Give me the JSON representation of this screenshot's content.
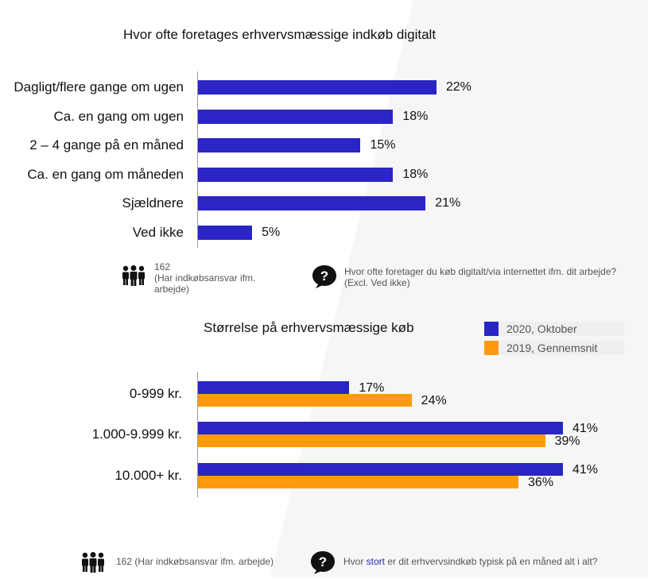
{
  "colors": {
    "primary_bar": "#2a25c4",
    "secondary_bar": "#ff9a0f",
    "axis": "#9a9a9a",
    "note_text": "#555555"
  },
  "icons": {
    "people": "people-icon",
    "question": "question-bubble-icon"
  },
  "chart_data": [
    {
      "type": "bar",
      "orientation": "horizontal",
      "title": "Hvor ofte foretages erhvervsmæssige indkøb digitalt",
      "categories": [
        "Dagligt/flere gange om ugen",
        "Ca. en gang om ugen",
        "2 – 4 gange på en måned",
        "Ca. en gang om måneden",
        "Sjældnere",
        "Ved ikke"
      ],
      "values": [
        22,
        18,
        15,
        18,
        21,
        5
      ],
      "value_labels": [
        "22%",
        "18%",
        "15%",
        "18%",
        "21%",
        "5%"
      ],
      "unit": "%",
      "xlim": [
        0,
        27
      ],
      "grid": false
    },
    {
      "type": "bar",
      "orientation": "horizontal",
      "title": "Størrelse på erhvervsmæssige køb",
      "categories": [
        "0-999 kr.",
        "1.000-9.999 kr.",
        "10.000+ kr."
      ],
      "series": [
        {
          "name": "2020, Oktober",
          "values": [
            17,
            41,
            41
          ],
          "value_labels": [
            "17%",
            "41%",
            "41%"
          ]
        },
        {
          "name": "2019, Gennemsnit",
          "values": [
            24,
            39,
            36
          ],
          "value_labels": [
            "24%",
            "39%",
            "36%"
          ]
        }
      ],
      "unit": "%",
      "xlim": [
        0,
        50
      ],
      "legend_position": "top-right",
      "grid": false
    }
  ],
  "notes": {
    "top_count": "162",
    "top_count_desc": "(Har indkøbsansvar ifm. arbejde)",
    "top_question": "Hvor ofte foretager du køb digitalt/via internettet ifm. dit arbejde? (Excl. Ved ikke)",
    "bottom_count": "162 (Har indkøbsansvar ifm. arbejde)",
    "bottom_question_pre": "Hvor ",
    "bottom_question_em": "stort",
    "bottom_question_post": " er dit erhvervsindkøb typisk på en måned alt i alt?"
  }
}
